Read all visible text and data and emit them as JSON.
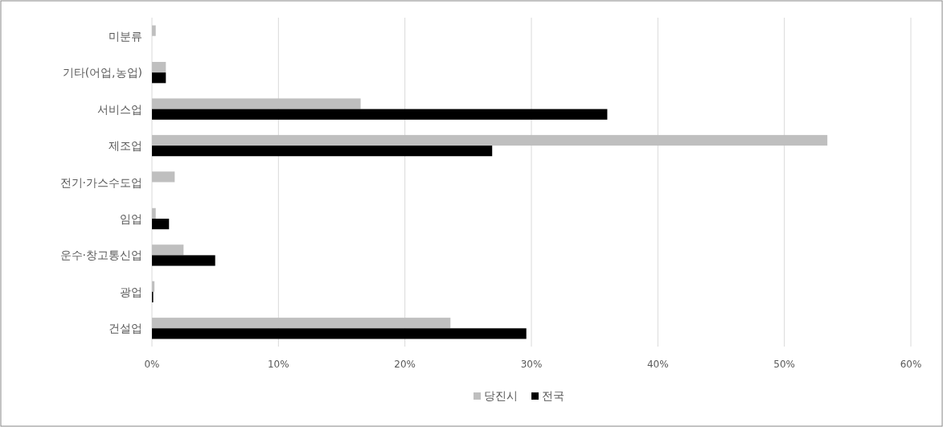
{
  "chart_data": {
    "type": "bar",
    "orientation": "horizontal",
    "categories": [
      "미분류",
      "기타(어업,농업)",
      "서비스업",
      "제조업",
      "전기·가스수도업",
      "임업",
      "운수·창고통신업",
      "광업",
      "건설업"
    ],
    "series": [
      {
        "name": "당진시",
        "color": "#bfbfbf",
        "values": [
          0.3,
          1.1,
          16.5,
          53.4,
          1.8,
          0.3,
          2.5,
          0.2,
          23.6
        ]
      },
      {
        "name": "전국",
        "color": "#000000",
        "values": [
          null,
          1.1,
          36.0,
          26.9,
          null,
          1.35,
          5.0,
          0.1,
          29.6
        ]
      }
    ],
    "xlim": [
      0,
      60
    ],
    "xticks": [
      {
        "value": 0,
        "label": "0%"
      },
      {
        "value": 10,
        "label": "10%"
      },
      {
        "value": 20,
        "label": "20%"
      },
      {
        "value": 30,
        "label": "30%"
      },
      {
        "value": 40,
        "label": "40%"
      },
      {
        "value": 50,
        "label": "50%"
      },
      {
        "value": 60,
        "label": "60%"
      }
    ],
    "grid": "x",
    "legend": "bottom"
  }
}
